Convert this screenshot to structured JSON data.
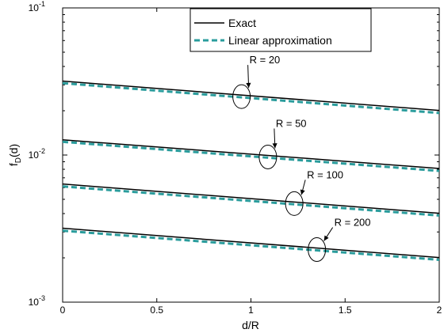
{
  "chart_data": {
    "type": "line",
    "xlabel": "d/R",
    "ylabel": "f",
    "ylabel_sub": "D",
    "ylabel_suffix": "(d)",
    "xlim": [
      0,
      2
    ],
    "ylim": [
      0.001,
      0.1
    ],
    "yscale": "log",
    "grid": false,
    "legend_position": "top-center",
    "x_ticks": [
      0,
      0.5,
      1,
      1.5,
      2
    ],
    "x_tick_labels": [
      "0",
      "0.5",
      "1",
      "1.5",
      "2"
    ],
    "y_ticks": [
      0.001,
      0.01,
      0.1
    ],
    "y_tick_labels": [
      {
        "base": "10",
        "exp": "-3"
      },
      {
        "base": "10",
        "exp": "-2"
      },
      {
        "base": "10",
        "exp": "-1"
      }
    ],
    "legend": [
      {
        "label": "Exact",
        "color": "#000000",
        "style": "solid"
      },
      {
        "label": "Linear approximation",
        "color": "#2a9c9c",
        "style": "dashed"
      }
    ],
    "groups": [
      {
        "label": "R = 20",
        "exact": [
          0.0318,
          0.0201
        ],
        "approx": [
          0.0308,
          0.0193
        ],
        "circle_x": 0.95
      },
      {
        "label": "R = 50",
        "exact": [
          0.0127,
          0.0081
        ],
        "approx": [
          0.0123,
          0.0078
        ],
        "circle_x": 1.09
      },
      {
        "label": "R = 100",
        "exact": [
          0.00635,
          0.00402
        ],
        "approx": [
          0.00612,
          0.00388
        ],
        "circle_x": 1.23
      },
      {
        "label": "R = 200",
        "exact": [
          0.00318,
          0.00201
        ],
        "approx": [
          0.00306,
          0.00194
        ],
        "circle_x": 1.35
      }
    ]
  }
}
